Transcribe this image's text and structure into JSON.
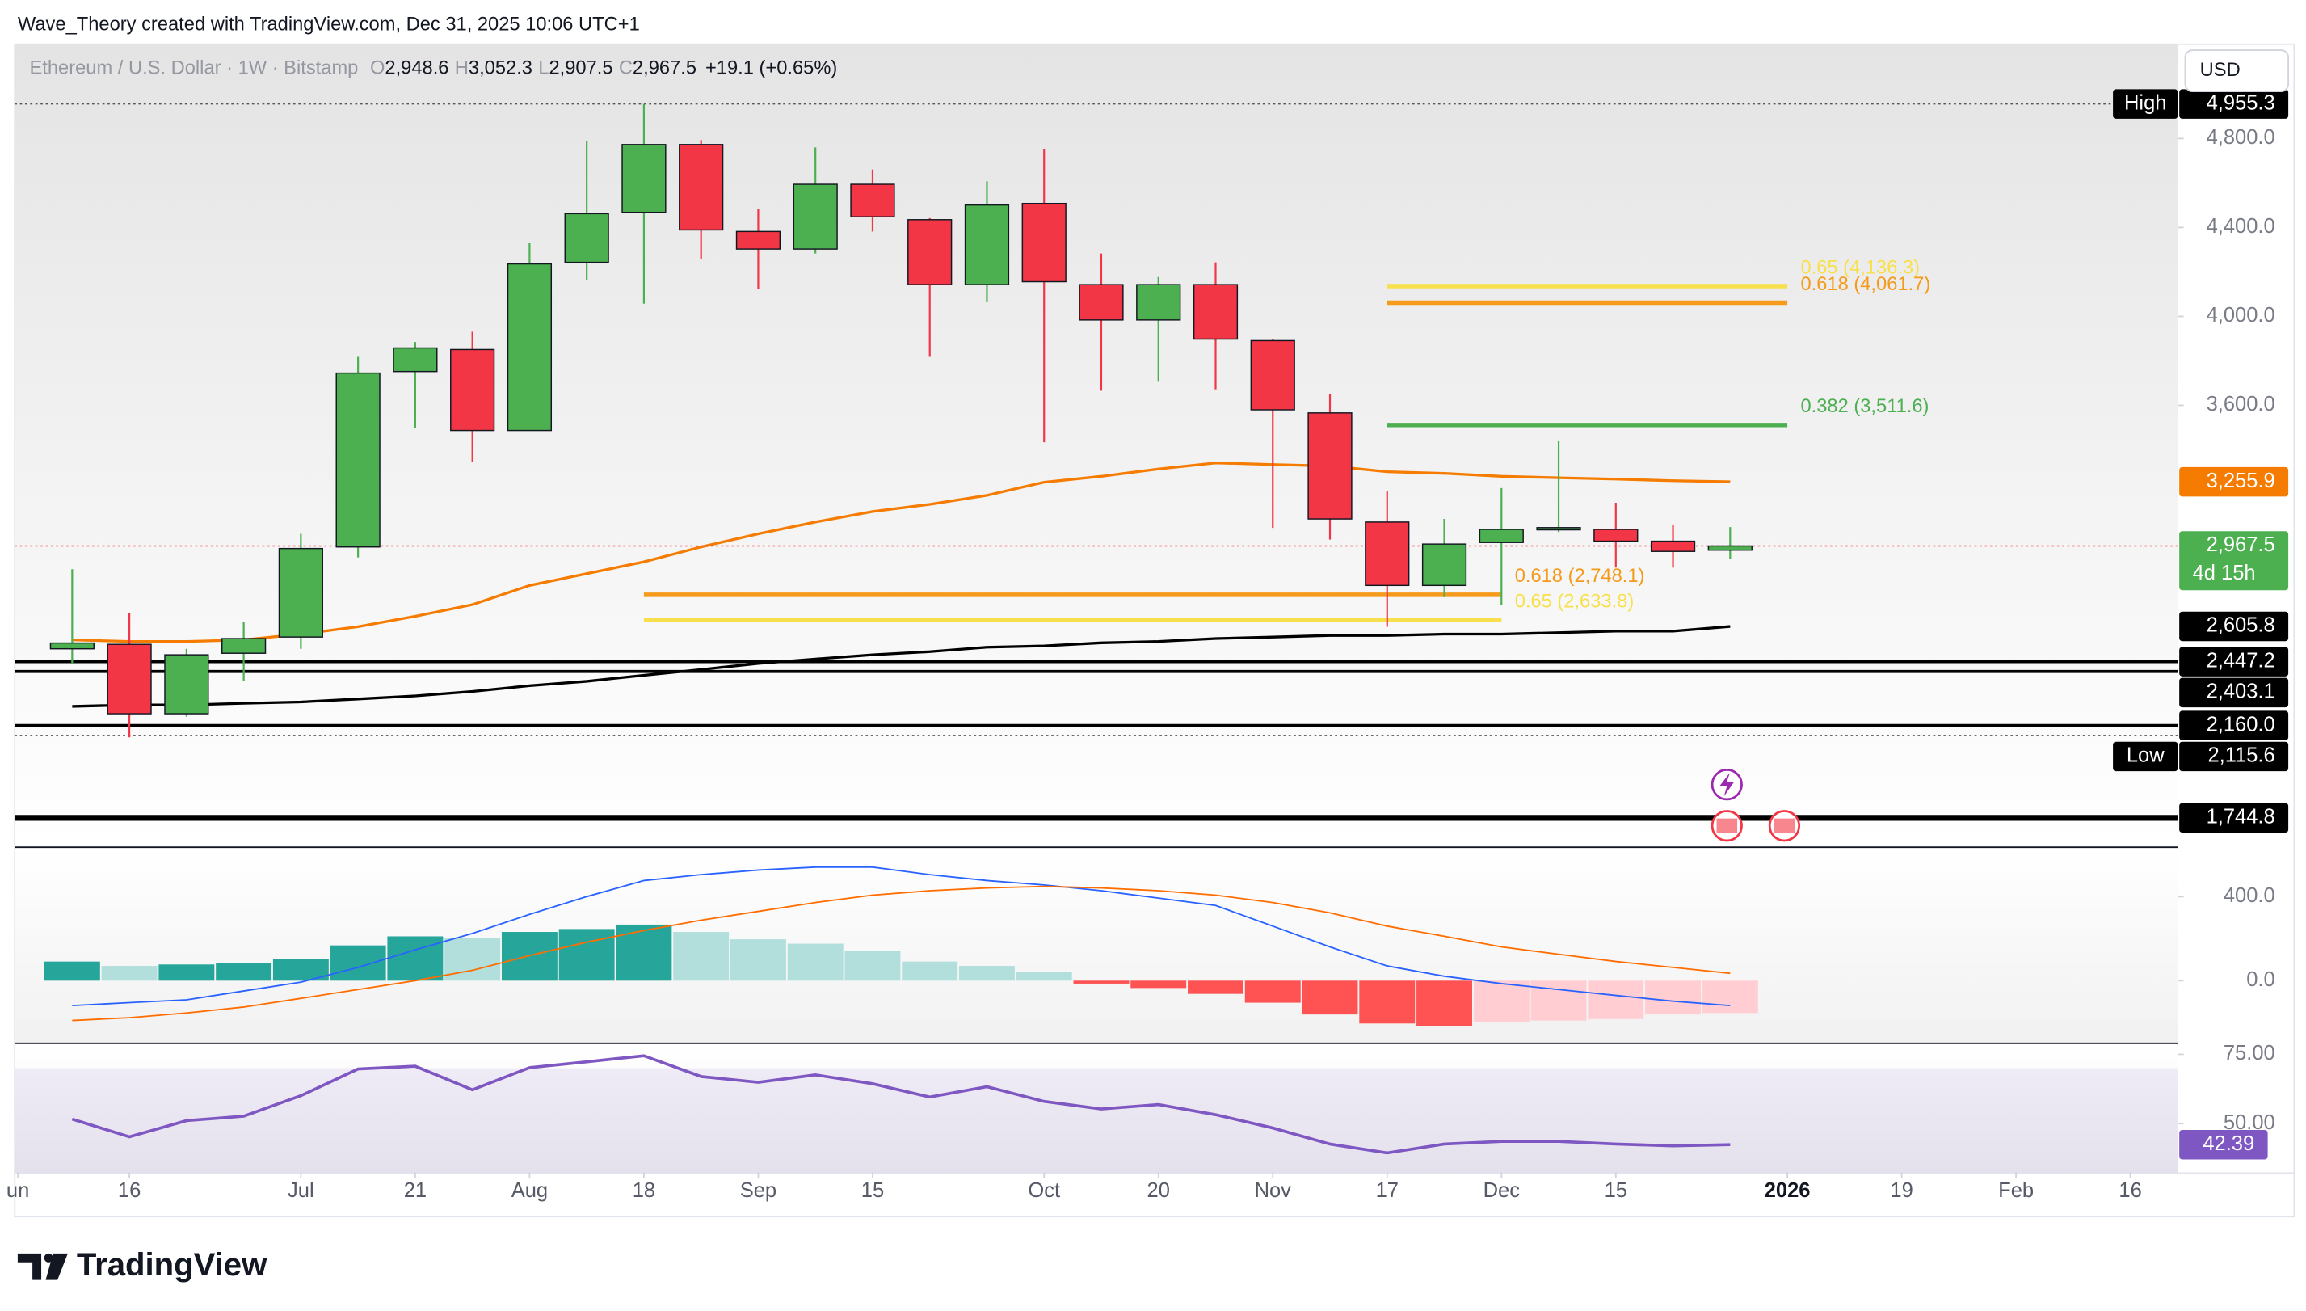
{
  "header": "Wave_Theory created with TradingView.com, Dec 31, 2025 10:06 UTC+1",
  "currency_button": "USD",
  "footer_logo": "TradingView",
  "chart_data": {
    "type": "candlestick",
    "title": "Ethereum / U.S. Dollar · 1W · Bitstamp",
    "ohlc_legend": [
      {
        "key": "O",
        "value": "2,948.6"
      },
      {
        "key": "H",
        "value": "3,052.3"
      },
      {
        "key": "L",
        "value": "2,907.5"
      },
      {
        "key": "C",
        "value": "2,967.5"
      }
    ],
    "change": "+19.1 (+0.65%)",
    "up_color": "#4caf50",
    "down_color": "#f23645",
    "x": [
      0,
      1,
      2,
      3,
      4,
      5,
      6,
      7,
      8,
      9,
      10,
      11,
      12,
      13,
      14,
      15,
      16,
      17,
      18,
      19,
      20,
      21,
      22,
      23,
      24,
      25,
      26,
      27,
      28,
      29
    ],
    "open": [
      2505,
      2525,
      2213,
      2485,
      2558,
      2963,
      3752,
      3851,
      3487,
      4243,
      4468,
      4773,
      4382,
      4303,
      4594,
      4435,
      4143,
      4508,
      4143,
      3984,
      4143,
      3891,
      3566,
      3075,
      2790,
      2983,
      3040,
      3042,
      2989,
      2948.6
    ],
    "high": [
      2863,
      2664,
      2505,
      2624,
      3022,
      3818,
      3885,
      3931,
      4329,
      4787,
      4955.3,
      4793,
      4482,
      4760,
      4661,
      4442,
      4608,
      4754,
      4283,
      4177,
      4243,
      3898,
      3652,
      3215,
      3089,
      3228,
      3440,
      3162,
      3062,
      3052.3
    ],
    "low": [
      2438,
      2107,
      2200,
      2359,
      2505,
      2916,
      3500,
      3347,
      3487,
      4163,
      4057,
      4256,
      4123,
      4283,
      4382,
      3818,
      4064,
      3434,
      3666,
      3706,
      3672,
      3049,
      2996,
      2604,
      2737,
      2704,
      3030,
      2870,
      2870,
      2907.5
    ],
    "close": [
      2531,
      2213,
      2478,
      2551,
      2956,
      3745,
      3858,
      3487,
      4236,
      4462,
      4773,
      4389,
      4303,
      4594,
      4448,
      4143,
      4501,
      4156,
      3984,
      4143,
      3898,
      3580,
      3089,
      2790,
      2976,
      3042,
      3050,
      2989,
      2943,
      2967.5
    ],
    "xlim": [
      -1.005,
      36.83
    ],
    "xticks": [
      {
        "value": -0.95,
        "label": "un"
      },
      {
        "value": 1,
        "label": "16"
      },
      {
        "value": 4,
        "label": "Jul"
      },
      {
        "value": 6,
        "label": "21"
      },
      {
        "value": 8,
        "label": "Aug"
      },
      {
        "value": 10,
        "label": "18"
      },
      {
        "value": 12,
        "label": "Sep"
      },
      {
        "value": 14,
        "label": "15"
      },
      {
        "value": 17,
        "label": "Oct"
      },
      {
        "value": 19,
        "label": "20"
      },
      {
        "value": 21,
        "label": "Nov"
      },
      {
        "value": 23,
        "label": "17"
      },
      {
        "value": 25,
        "label": "Dec"
      },
      {
        "value": 27,
        "label": "15"
      },
      {
        "value": 30,
        "label": "2026"
      },
      {
        "value": 32,
        "label": "19"
      },
      {
        "value": 34,
        "label": "Feb"
      },
      {
        "value": 36,
        "label": "16"
      }
    ],
    "ylim": [
      1616,
      5224
    ],
    "yticks": [
      {
        "value": 4800,
        "label": "4,800.0"
      },
      {
        "value": 4400,
        "label": "4,400.0"
      },
      {
        "value": 4000,
        "label": "4,000.0"
      },
      {
        "value": 3600,
        "label": "3,600.0"
      }
    ],
    "moving_averages": [
      {
        "color": "#f57c00",
        "values": [
          2545,
          2538,
          2538,
          2545,
          2571,
          2604,
          2651,
          2704,
          2790,
          2843,
          2896,
          2963,
          3022,
          3075,
          3122,
          3155,
          3195,
          3254,
          3281,
          3314,
          3341,
          3334,
          3327,
          3301,
          3294,
          3281,
          3274,
          3268,
          3261,
          3255.9
        ]
      },
      {
        "color": "#000000",
        "values": [
          2246,
          2253,
          2253,
          2260,
          2266,
          2279,
          2293,
          2313,
          2339,
          2359,
          2386,
          2412,
          2439,
          2459,
          2478,
          2492,
          2512,
          2518,
          2532,
          2538,
          2551,
          2558,
          2565,
          2565,
          2571,
          2571,
          2578,
          2584,
          2584,
          2605.8
        ]
      }
    ],
    "levels": [
      {
        "value": 2447.2,
        "style": "normal"
      },
      {
        "value": 2403.1,
        "style": "normal"
      },
      {
        "value": 2160.0,
        "style": "normal"
      },
      {
        "value": 1744.8,
        "style": "thick"
      }
    ],
    "fib_levels": [
      {
        "label": "0.65 (4,136.3)",
        "value": 4136.3,
        "color": "#f7e04b",
        "x_range": [
          23,
          30
        ]
      },
      {
        "label": "0.618 (4,061.7)",
        "value": 4061.7,
        "color": "#f59a1b",
        "x_range": [
          23,
          30
        ]
      },
      {
        "label": "0.382 (3,511.6)",
        "value": 3511.6,
        "color": "#4caf50",
        "x_range": [
          23,
          30
        ]
      },
      {
        "label": "0.618 (2,748.1)",
        "value": 2748.1,
        "color": "#f59a1b",
        "x_range": [
          10,
          25
        ]
      },
      {
        "label": "0.65 (2,633.8)",
        "value": 2633.8,
        "color": "#f7e04b",
        "x_range": [
          10,
          25
        ]
      }
    ],
    "price_labels": [
      {
        "value": 4955.3,
        "label": "4,955.3",
        "tag": "High",
        "color": "#000000"
      },
      {
        "value": 3255.9,
        "label": "3,255.9",
        "color": "#f57c00"
      },
      {
        "value": 2967.5,
        "label": "2,967.5",
        "countdown": "4d 15h",
        "color": "#4caf50"
      },
      {
        "value": 2605.8,
        "label": "2,605.8",
        "color": "#000000"
      },
      {
        "value": 2447.2,
        "label": "2,447.2",
        "color": "#000000"
      },
      {
        "value": 2403.1,
        "label": "2,403.1",
        "color": "#000000"
      },
      {
        "value": 2160.0,
        "label": "2,160.0",
        "color": "#000000"
      },
      {
        "value": 2115.6,
        "label": "2,115.6",
        "tag": "Low",
        "color": "#000000"
      },
      {
        "value": 1744.8,
        "label": "1,744.8",
        "color": "#000000"
      }
    ],
    "macd": {
      "ylim": [
        -295,
        632
      ],
      "yticks": [
        {
          "value": 400,
          "label": "400.0"
        },
        {
          "value": 0,
          "label": "0.0"
        }
      ],
      "histogram": [
        91,
        70,
        77,
        84,
        105,
        168,
        211,
        204,
        232,
        246,
        267,
        232,
        197,
        176,
        140,
        91,
        70,
        42,
        -14,
        -35,
        -63,
        -105,
        -161,
        -204,
        -218,
        -197,
        -190,
        -183,
        -161,
        -154
      ],
      "macd": [
        -119,
        -105,
        -91,
        -49,
        -7,
        63,
        147,
        225,
        316,
        400,
        477,
        505,
        527,
        541,
        541,
        505,
        477,
        456,
        428,
        393,
        358,
        260,
        161,
        70,
        21,
        -14,
        -42,
        -70,
        -98,
        -119
      ],
      "signal": [
        -190,
        -176,
        -154,
        -126,
        -84,
        -42,
        0,
        49,
        119,
        183,
        239,
        288,
        330,
        372,
        407,
        428,
        442,
        449,
        442,
        428,
        407,
        372,
        323,
        260,
        211,
        161,
        126,
        91,
        63,
        35
      ],
      "macd_color": "#2962ff",
      "signal_color": "#ff6d00",
      "histogram_colors": {
        "up_rising": "#26a69a",
        "up_falling": "#b2dfdb",
        "down_falling": "#ff5252",
        "down_rising": "#ffcdd2"
      }
    },
    "rsi": {
      "ylim": [
        32.4,
        78.7
      ],
      "yticks": [
        {
          "value": 75,
          "label": "75.00"
        },
        {
          "value": 50,
          "label": "50.00"
        }
      ],
      "values": [
        51.6,
        45.2,
        51.1,
        52.7,
        60.1,
        69.7,
        70.7,
        62.2,
        70.2,
        72.3,
        74.5,
        67.0,
        64.9,
        67.6,
        64.4,
        59.6,
        63.3,
        58.0,
        55.3,
        56.9,
        53.2,
        48.4,
        42.6,
        39.4,
        42.6,
        43.6,
        43.6,
        42.6,
        42.0,
        42.39
      ],
      "value_label": "42.39",
      "band": [
        30,
        70
      ],
      "color": "#7e57c2"
    }
  }
}
